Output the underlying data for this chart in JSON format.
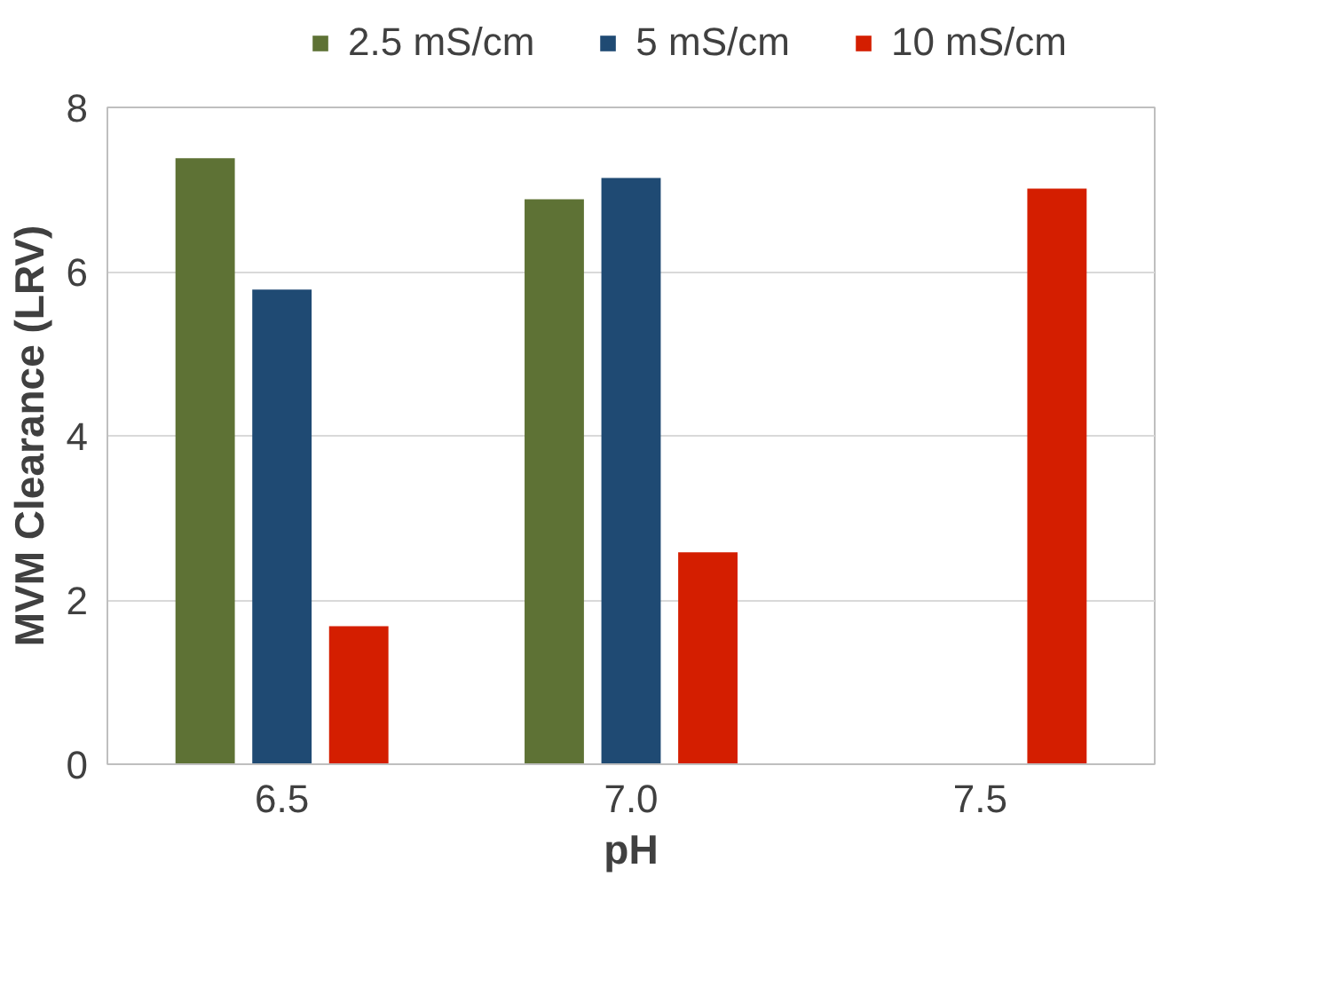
{
  "chart_data": {
    "type": "bar",
    "xlabel": "pH",
    "ylabel": "MVM Clearance (LRV)",
    "categories": [
      "6.5",
      "7.0",
      "7.5"
    ],
    "series": [
      {
        "name": "2.5 mS/cm",
        "color": "#5e7235",
        "values": [
          7.38,
          6.88,
          null
        ]
      },
      {
        "name": "5 mS/cm",
        "color": "#1f4a73",
        "values": [
          5.78,
          7.14,
          null
        ]
      },
      {
        "name": "10 mS/cm",
        "color": "#d41e00",
        "values": [
          1.68,
          2.58,
          7.01
        ]
      }
    ],
    "ylim": [
      0,
      8
    ],
    "yticks": [
      0,
      2,
      4,
      6,
      8
    ],
    "grid": "y",
    "legend": "top"
  }
}
